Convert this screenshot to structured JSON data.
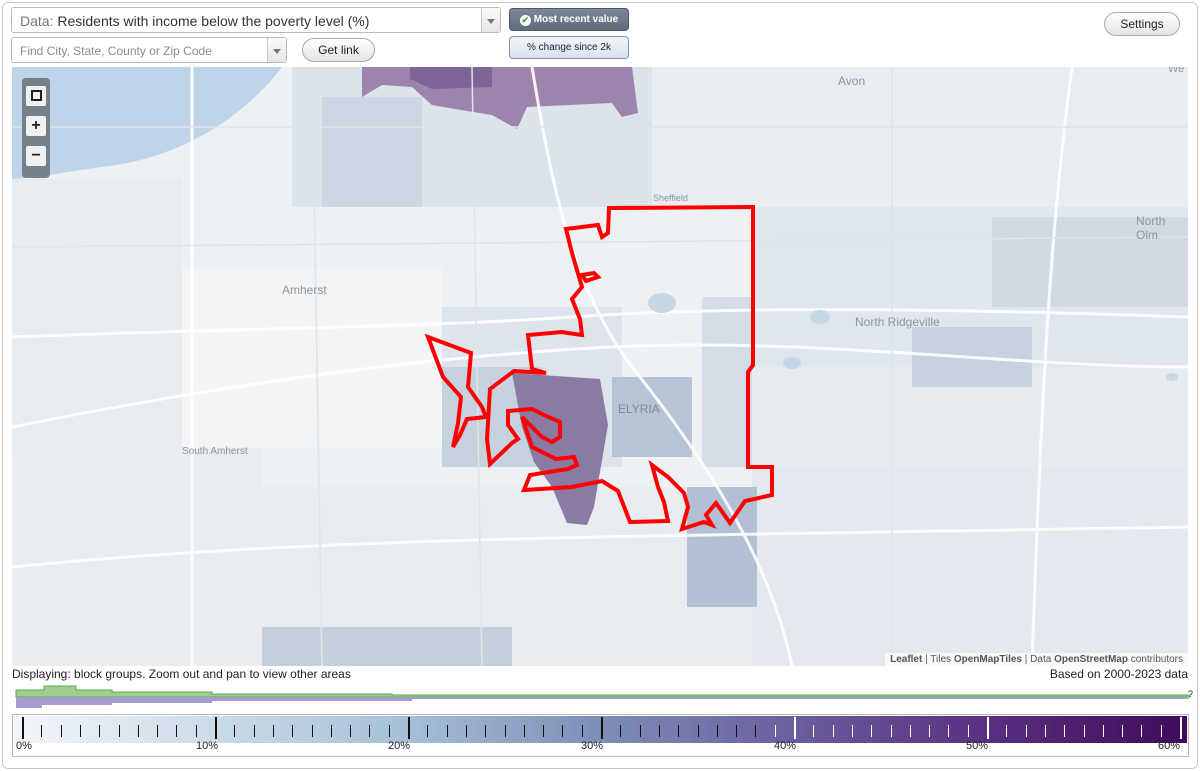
{
  "controls": {
    "data_prefix": "Data:",
    "data_select_value": "Residents with income below the poverty level (%)",
    "find_placeholder": "Find City, State, County or Zip Code",
    "get_link_label": "Get link",
    "most_recent_label": "Most recent value",
    "change_label": "% change since 2k",
    "settings_label": "Settings"
  },
  "map": {
    "zoom_in": "+",
    "zoom_out": "−",
    "fullscreen_icon": "fullscreen-icon",
    "place_labels": [
      "Avon",
      "Sheffield",
      "North Olm",
      "Amherst",
      "North Ridgeville",
      "ELYRIA",
      "South Amherst",
      "We"
    ],
    "attribution": {
      "leaflet": "Leaflet",
      "sep1": " | Tiles ",
      "tiles": "OpenMapTiles",
      "sep2": " | Data ",
      "data": "OpenStreetMap",
      "suffix": " contributors"
    },
    "boundary_color": "#ff0000"
  },
  "status": {
    "displaying": "Displaying: block groups. Zoom out and pan to view other areas",
    "based_on": "Based on 2000-2023 data",
    "histogram_question": "?"
  },
  "legend": {
    "labels": [
      "0%",
      "10%",
      "20%",
      "30%",
      "40%",
      "50%",
      "60%"
    ],
    "colors": {
      "low": "#f4f7fa",
      "mid": "#7d8eb7",
      "high": "#3f0a5a"
    }
  }
}
